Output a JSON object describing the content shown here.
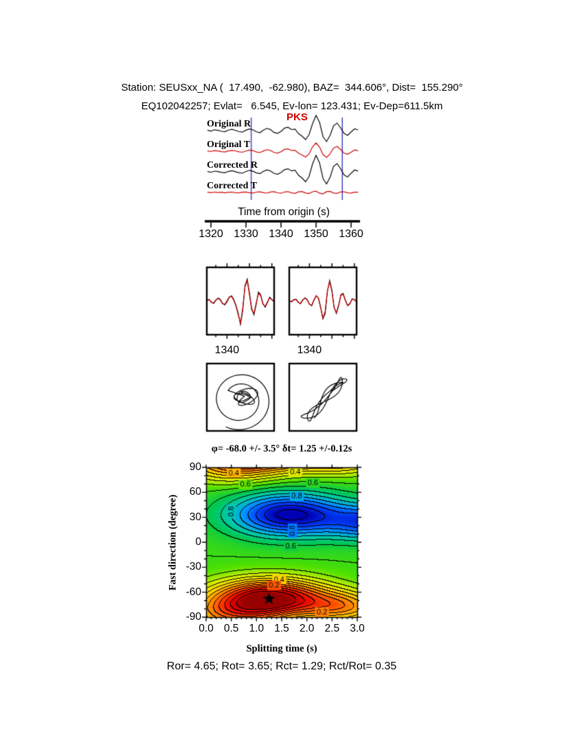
{
  "header": {
    "line1": "Station: SEUSxx_NA (  17.490,  -62.980), BAZ=  344.606°, Dist=  155.290°",
    "line2": "EQ102042257; Evlat=   6.545, Ev-lon= 123.431; Ev-Dep=611.5km"
  },
  "footer": {
    "text": "Ror= 4.65; Rot= 3.65; Rct= 1.29; Rct/Rot= 0.35"
  },
  "colors": {
    "trace_black": "#000000",
    "trace_red": "#cc0000",
    "window_marker": "#4444bb",
    "phase_label": "#cc0000",
    "background": "#ffffff"
  },
  "chart_data": [
    {
      "id": "seismograms",
      "type": "line",
      "phase_label": "PKS",
      "xlabel": "Time from origin (s)",
      "xticks": [
        1320,
        1330,
        1340,
        1350,
        1360
      ],
      "xlim": [
        1319,
        1362
      ],
      "x_start": 1319,
      "x_step": 1,
      "window_s": [
        1331.5,
        1357.5
      ],
      "series": [
        {
          "name": "Original R",
          "color": "#000000",
          "values": [
            0.6,
            -0.8,
            1.2,
            0.4,
            -1.0,
            -1.6,
            0.8,
            1.8,
            0.3,
            -1.5,
            -2.2,
            0.6,
            2.4,
            1.0,
            -1.8,
            -3.0,
            0.8,
            3.2,
            1.4,
            -2.6,
            -4.0,
            -1.2,
            3.6,
            4.8,
            1.5,
            2.0,
            -4.5,
            -8.0,
            -13.0,
            -6.0,
            10.0,
            22.0,
            12.0,
            -9.0,
            -16.0,
            -7.0,
            7.0,
            11.0,
            4.0,
            -4.0,
            -7.0,
            -2.0,
            2.5,
            1.0
          ]
        },
        {
          "name": "Original T",
          "color": "#cc0000",
          "values": [
            0.4,
            -0.5,
            0.8,
            0.3,
            -0.7,
            -1.1,
            0.4,
            1.2,
            0.5,
            -0.9,
            -1.5,
            0.3,
            1.6,
            0.8,
            -1.2,
            -2.0,
            0.4,
            2.2,
            1.0,
            -1.8,
            -2.8,
            -0.8,
            2.6,
            3.4,
            1.0,
            1.4,
            -3.0,
            -5.5,
            -8.5,
            -4.0,
            6.5,
            12.0,
            6.0,
            -5.0,
            -9.0,
            -4.0,
            4.5,
            7.0,
            2.5,
            -2.8,
            -4.5,
            -1.5,
            1.8,
            0.7
          ]
        },
        {
          "name": "Corrected R",
          "color": "#000000",
          "values": [
            0.5,
            -0.7,
            1.0,
            0.3,
            -0.9,
            -1.4,
            0.7,
            1.6,
            0.2,
            -1.3,
            -2.0,
            0.5,
            2.2,
            0.9,
            -1.6,
            -2.7,
            0.7,
            2.9,
            1.2,
            -2.3,
            -3.6,
            -1.0,
            3.2,
            4.4,
            1.3,
            2.4,
            -5.0,
            -9.0,
            -14.5,
            -7.0,
            11.5,
            24.0,
            13.0,
            -10.0,
            -17.5,
            -8.0,
            8.0,
            12.0,
            4.5,
            -4.5,
            -7.5,
            -2.2,
            2.8,
            1.1
          ]
        },
        {
          "name": "Corrected T",
          "color": "#cc0000",
          "values": [
            0.3,
            -0.4,
            0.5,
            -0.2,
            0.4,
            -0.6,
            0.3,
            0.5,
            -0.4,
            -0.6,
            0.4,
            0.7,
            -0.3,
            -0.8,
            0.5,
            0.9,
            -0.4,
            -1.0,
            0.6,
            1.1,
            -0.5,
            -1.2,
            0.7,
            1.2,
            -0.6,
            -1.3,
            0.8,
            1.4,
            -0.9,
            -1.6,
            1.0,
            1.8,
            -1.2,
            -2.0,
            1.1,
            1.6,
            -0.9,
            -1.3,
            0.7,
            1.0,
            -0.6,
            -0.8,
            0.4,
            0.3
          ]
        }
      ]
    },
    {
      "id": "waveform-windows",
      "type": "line",
      "panels": [
        {
          "tick_label": "1340",
          "x_start": 1331,
          "x_step": 1,
          "series": [
            {
              "color": "#000000",
              "values": [
                0.5,
                1.2,
                -0.6,
                -1.8,
                0.4,
                2.2,
                1.2,
                -1.6,
                -2.8,
                -0.6,
                2.6,
                3.8,
                1.2,
                -3.2,
                -9.0,
                -17.0,
                -7.0,
                11.0,
                16.0,
                6.0,
                -5.5,
                -10.0,
                -2.5,
                6.5,
                4.5,
                -1.8,
                -4.5,
                -1.2,
                2.8,
                1.2,
                -0.6
              ]
            },
            {
              "color": "#cc0000",
              "values": [
                0.3,
                0.9,
                -0.9,
                -1.4,
                0.8,
                1.9,
                0.7,
                -2.0,
                -2.4,
                0.2,
                3.0,
                3.3,
                0.6,
                -3.8,
                -10.0,
                -16.0,
                -5.0,
                10.0,
                15.0,
                4.5,
                -6.5,
                -9.0,
                -1.5,
                5.5,
                3.8,
                -2.3,
                -3.9,
                -0.7,
                2.3,
                0.9,
                -0.4
              ]
            }
          ]
        },
        {
          "tick_label": "1340",
          "x_start": 1331,
          "x_step": 1,
          "series": [
            {
              "color": "#000000",
              "values": [
                0.3,
                -0.6,
                0.9,
                1.4,
                -0.7,
                -2.0,
                0.6,
                2.4,
                1.1,
                -2.2,
                -3.4,
                0.5,
                3.8,
                2.2,
                -4.5,
                -13.0,
                -9.0,
                7.0,
                15.0,
                8.0,
                -4.5,
                -9.0,
                -3.5,
                4.5,
                5.5,
                0.6,
                -3.4,
                -2.2,
                1.6,
                1.1,
                -0.5
              ]
            },
            {
              "color": "#cc0000",
              "values": [
                0.2,
                -0.4,
                1.1,
                1.1,
                -1.0,
                -1.7,
                0.9,
                2.1,
                0.7,
                -2.5,
                -3.0,
                0.9,
                4.0,
                1.8,
                -5.0,
                -12.5,
                -7.5,
                7.5,
                14.0,
                7.0,
                -5.0,
                -8.5,
                -2.8,
                4.0,
                5.0,
                0.2,
                -3.0,
                -1.8,
                1.3,
                0.9,
                -0.3
              ]
            }
          ]
        }
      ]
    },
    {
      "id": "particle-motion",
      "type": "line",
      "panels": [
        {
          "style": "elliptical-spiral"
        },
        {
          "style": "linearized"
        }
      ]
    },
    {
      "id": "misfit-surface",
      "type": "heatmap",
      "title": "φ= -68.0 +/- 3.5° δt= 1.25 +/-0.12s",
      "xlabel": "Splitting time (s)",
      "ylabel": "Fast direction (degree)",
      "xlim": [
        0,
        3
      ],
      "ylim": [
        -90,
        90
      ],
      "xticks": [
        0.0,
        0.5,
        1.0,
        1.5,
        2.0,
        2.5,
        3.0
      ],
      "yticks": [
        90,
        60,
        30,
        0,
        -30,
        -60,
        -90
      ],
      "best_fit": {
        "phi_deg": -68.0,
        "phi_err_deg": 3.5,
        "dt_s": 1.25,
        "dt_err_s": 0.12
      },
      "contour_step": 0.05,
      "surface_model": {
        "base": 0.6,
        "gaussians": [
          {
            "dt": 1.25,
            "phi": -68,
            "amp": -0.62,
            "sdt": 0.8,
            "sphi": 16
          },
          {
            "dt": 0.45,
            "phi": -88,
            "amp": -0.22,
            "sdt": 0.65,
            "sphi": 14
          },
          {
            "dt": 1.65,
            "phi": 33,
            "amp": 0.42,
            "sdt": 0.8,
            "sphi": 18
          },
          {
            "dt": 3.35,
            "phi": 24,
            "amp": 0.3,
            "sdt": 0.6,
            "sphi": 15
          },
          {
            "dt": 2.75,
            "phi": -78,
            "amp": -0.26,
            "sdt": 0.55,
            "sphi": 13
          }
        ]
      },
      "colormap": [
        [
          0.0,
          "#960000"
        ],
        [
          0.1,
          "#e60000"
        ],
        [
          0.2,
          "#ff4600"
        ],
        [
          0.3,
          "#ff9600"
        ],
        [
          0.4,
          "#ffdc00"
        ],
        [
          0.5,
          "#c8f000"
        ],
        [
          0.58,
          "#50e100"
        ],
        [
          0.66,
          "#00c850"
        ],
        [
          0.74,
          "#00c8b4"
        ],
        [
          0.82,
          "#0096ff"
        ],
        [
          0.9,
          "#0046ff"
        ],
        [
          1.0,
          "#0000b4"
        ]
      ],
      "contour_labels": [
        {
          "v": "0.4",
          "dt": 0.55,
          "phi": 83
        },
        {
          "v": "0.6",
          "dt": 0.78,
          "phi": 69
        },
        {
          "v": "0.8",
          "dt": 0.5,
          "phi": 37,
          "rot": 90
        },
        {
          "v": "0.4",
          "dt": 1.77,
          "phi": 84
        },
        {
          "v": "0.6",
          "dt": 2.12,
          "phi": 71
        },
        {
          "v": "0.8",
          "dt": 1.8,
          "phi": 55
        },
        {
          "v": "0.8",
          "dt": 1.72,
          "phi": 14,
          "rot": 90
        },
        {
          "v": "0.6",
          "dt": 1.68,
          "phi": -5
        },
        {
          "v": "0.4",
          "dt": 1.45,
          "phi": -45
        },
        {
          "v": "0.2",
          "dt": 1.35,
          "phi": -52
        },
        {
          "v": "0.2",
          "dt": 2.3,
          "phi": -84
        }
      ]
    }
  ]
}
